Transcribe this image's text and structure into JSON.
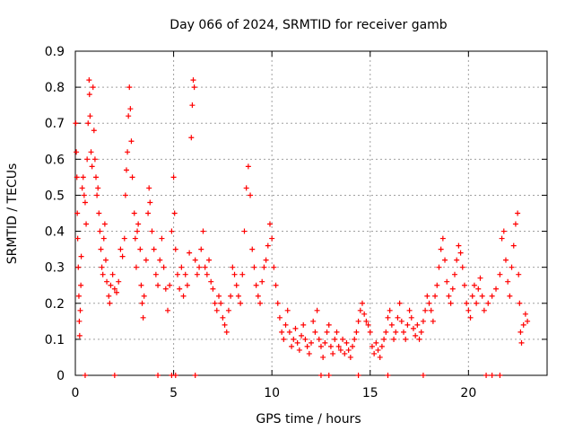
{
  "chart_data": {
    "type": "scatter",
    "title": "Day 066 of 2024, SRMTID for receiver gamb",
    "xlabel": "GPS time / hours",
    "ylabel": "SRMTID / TECUs",
    "xlim": [
      0,
      24
    ],
    "ylim": [
      0,
      0.9
    ],
    "x_ticks": [
      "0",
      "5",
      "10",
      "15",
      "20"
    ],
    "x_tick_values": [
      0,
      5,
      10,
      15,
      20
    ],
    "y_ticks": [
      "0",
      "0.1",
      "0.2",
      "0.3",
      "0.4",
      "0.5",
      "0.6",
      "0.7",
      "0.8",
      "0.9"
    ],
    "y_tick_values": [
      0,
      0.1,
      0.2,
      0.3,
      0.4,
      0.5,
      0.6,
      0.7,
      0.8,
      0.9
    ],
    "grid": true,
    "marker": "+",
    "series_color": "#ff0000",
    "series": [
      {
        "name": "SRMTID",
        "points": [
          [
            0.02,
            0.7
          ],
          [
            0.05,
            0.62
          ],
          [
            0.08,
            0.55
          ],
          [
            0.1,
            0.45
          ],
          [
            0.12,
            0.38
          ],
          [
            0.15,
            0.3
          ],
          [
            0.18,
            0.22
          ],
          [
            0.2,
            0.15
          ],
          [
            0.22,
            0.11
          ],
          [
            0.25,
            0.18
          ],
          [
            0.28,
            0.25
          ],
          [
            0.3,
            0.33
          ],
          [
            0.35,
            0.52
          ],
          [
            0.4,
            0.55
          ],
          [
            0.45,
            0.5
          ],
          [
            0.5,
            0.48
          ],
          [
            0.55,
            0.42
          ],
          [
            0.6,
            0.6
          ],
          [
            0.65,
            0.7
          ],
          [
            0.7,
            0.82
          ],
          [
            0.72,
            0.78
          ],
          [
            0.75,
            0.72
          ],
          [
            0.8,
            0.62
          ],
          [
            0.85,
            0.58
          ],
          [
            0.9,
            0.8
          ],
          [
            0.95,
            0.68
          ],
          [
            1.0,
            0.6
          ],
          [
            1.05,
            0.55
          ],
          [
            1.1,
            0.5
          ],
          [
            1.15,
            0.52
          ],
          [
            1.2,
            0.45
          ],
          [
            1.25,
            0.4
          ],
          [
            1.3,
            0.35
          ],
          [
            1.35,
            0.3
          ],
          [
            1.4,
            0.28
          ],
          [
            1.45,
            0.38
          ],
          [
            1.5,
            0.42
          ],
          [
            1.55,
            0.32
          ],
          [
            1.6,
            0.26
          ],
          [
            1.7,
            0.22
          ],
          [
            1.75,
            0.2
          ],
          [
            1.8,
            0.25
          ],
          [
            1.9,
            0.28
          ],
          [
            2.0,
            0.24
          ],
          [
            2.1,
            0.23
          ],
          [
            2.2,
            0.26
          ],
          [
            2.3,
            0.35
          ],
          [
            2.4,
            0.33
          ],
          [
            2.5,
            0.38
          ],
          [
            2.55,
            0.5
          ],
          [
            2.6,
            0.57
          ],
          [
            2.65,
            0.62
          ],
          [
            2.7,
            0.72
          ],
          [
            2.75,
            0.8
          ],
          [
            2.8,
            0.74
          ],
          [
            2.85,
            0.65
          ],
          [
            2.9,
            0.55
          ],
          [
            3.0,
            0.45
          ],
          [
            3.05,
            0.38
          ],
          [
            3.1,
            0.3
          ],
          [
            3.15,
            0.4
          ],
          [
            3.2,
            0.42
          ],
          [
            3.3,
            0.35
          ],
          [
            3.35,
            0.25
          ],
          [
            3.4,
            0.2
          ],
          [
            3.45,
            0.16
          ],
          [
            3.5,
            0.22
          ],
          [
            3.6,
            0.32
          ],
          [
            3.7,
            0.45
          ],
          [
            3.75,
            0.52
          ],
          [
            3.8,
            0.48
          ],
          [
            3.9,
            0.4
          ],
          [
            4.0,
            0.35
          ],
          [
            4.1,
            0.28
          ],
          [
            4.2,
            0.25
          ],
          [
            4.3,
            0.32
          ],
          [
            4.4,
            0.38
          ],
          [
            4.5,
            0.3
          ],
          [
            4.6,
            0.24
          ],
          [
            4.7,
            0.18
          ],
          [
            4.8,
            0.25
          ],
          [
            4.9,
            0.4
          ],
          [
            5.0,
            0.55
          ],
          [
            5.05,
            0.45
          ],
          [
            5.1,
            0.35
          ],
          [
            5.2,
            0.28
          ],
          [
            5.3,
            0.24
          ],
          [
            5.4,
            0.3
          ],
          [
            5.5,
            0.22
          ],
          [
            5.6,
            0.28
          ],
          [
            5.7,
            0.25
          ],
          [
            5.8,
            0.34
          ],
          [
            5.9,
            0.66
          ],
          [
            5.95,
            0.75
          ],
          [
            6.0,
            0.82
          ],
          [
            6.05,
            0.8
          ],
          [
            6.1,
            0.32
          ],
          [
            6.2,
            0.28
          ],
          [
            6.3,
            0.3
          ],
          [
            6.4,
            0.35
          ],
          [
            6.5,
            0.4
          ],
          [
            6.6,
            0.3
          ],
          [
            6.7,
            0.28
          ],
          [
            6.8,
            0.32
          ],
          [
            6.9,
            0.26
          ],
          [
            7.0,
            0.24
          ],
          [
            7.1,
            0.2
          ],
          [
            7.2,
            0.18
          ],
          [
            7.3,
            0.22
          ],
          [
            7.4,
            0.2
          ],
          [
            7.5,
            0.16
          ],
          [
            7.6,
            0.14
          ],
          [
            7.7,
            0.12
          ],
          [
            7.8,
            0.18
          ],
          [
            7.9,
            0.22
          ],
          [
            8.0,
            0.3
          ],
          [
            8.1,
            0.28
          ],
          [
            8.2,
            0.25
          ],
          [
            8.3,
            0.22
          ],
          [
            8.4,
            0.2
          ],
          [
            8.5,
            0.28
          ],
          [
            8.6,
            0.4
          ],
          [
            8.7,
            0.52
          ],
          [
            8.8,
            0.58
          ],
          [
            8.9,
            0.5
          ],
          [
            9.0,
            0.35
          ],
          [
            9.1,
            0.3
          ],
          [
            9.2,
            0.25
          ],
          [
            9.3,
            0.22
          ],
          [
            9.4,
            0.2
          ],
          [
            9.5,
            0.26
          ],
          [
            9.6,
            0.3
          ],
          [
            9.7,
            0.32
          ],
          [
            9.8,
            0.36
          ],
          [
            9.9,
            0.42
          ],
          [
            10.0,
            0.38
          ],
          [
            10.1,
            0.3
          ],
          [
            10.2,
            0.25
          ],
          [
            10.3,
            0.2
          ],
          [
            10.4,
            0.16
          ],
          [
            10.5,
            0.12
          ],
          [
            10.6,
            0.1
          ],
          [
            10.7,
            0.14
          ],
          [
            10.8,
            0.18
          ],
          [
            10.9,
            0.12
          ],
          [
            11.0,
            0.08
          ],
          [
            11.1,
            0.1
          ],
          [
            11.2,
            0.13
          ],
          [
            11.3,
            0.09
          ],
          [
            11.4,
            0.07
          ],
          [
            11.5,
            0.11
          ],
          [
            11.6,
            0.14
          ],
          [
            11.7,
            0.1
          ],
          [
            11.8,
            0.08
          ],
          [
            11.9,
            0.06
          ],
          [
            12.0,
            0.09
          ],
          [
            12.1,
            0.15
          ],
          [
            12.2,
            0.12
          ],
          [
            12.3,
            0.18
          ],
          [
            12.4,
            0.1
          ],
          [
            12.5,
            0.08
          ],
          [
            12.6,
            0.05
          ],
          [
            12.7,
            0.09
          ],
          [
            12.8,
            0.12
          ],
          [
            12.9,
            0.14
          ],
          [
            13.0,
            0.08
          ],
          [
            13.1,
            0.06
          ],
          [
            13.2,
            0.1
          ],
          [
            13.3,
            0.12
          ],
          [
            13.4,
            0.08
          ],
          [
            13.5,
            0.07
          ],
          [
            13.6,
            0.1
          ],
          [
            13.7,
            0.06
          ],
          [
            13.8,
            0.09
          ],
          [
            13.9,
            0.07
          ],
          [
            14.0,
            0.05
          ],
          [
            14.1,
            0.08
          ],
          [
            14.2,
            0.1
          ],
          [
            14.3,
            0.12
          ],
          [
            14.4,
            0.15
          ],
          [
            14.5,
            0.18
          ],
          [
            14.6,
            0.2
          ],
          [
            14.7,
            0.17
          ],
          [
            14.8,
            0.15
          ],
          [
            14.9,
            0.14
          ],
          [
            15.0,
            0.12
          ],
          [
            15.1,
            0.08
          ],
          [
            15.2,
            0.06
          ],
          [
            15.3,
            0.09
          ],
          [
            15.4,
            0.07
          ],
          [
            15.5,
            0.05
          ],
          [
            15.6,
            0.08
          ],
          [
            15.7,
            0.1
          ],
          [
            15.8,
            0.12
          ],
          [
            15.9,
            0.16
          ],
          [
            16.0,
            0.18
          ],
          [
            16.1,
            0.14
          ],
          [
            16.2,
            0.1
          ],
          [
            16.3,
            0.12
          ],
          [
            16.4,
            0.16
          ],
          [
            16.5,
            0.2
          ],
          [
            16.6,
            0.15
          ],
          [
            16.7,
            0.12
          ],
          [
            16.8,
            0.1
          ],
          [
            16.9,
            0.14
          ],
          [
            17.0,
            0.18
          ],
          [
            17.1,
            0.16
          ],
          [
            17.2,
            0.13
          ],
          [
            17.3,
            0.11
          ],
          [
            17.4,
            0.14
          ],
          [
            17.5,
            0.1
          ],
          [
            17.6,
            0.12
          ],
          [
            17.7,
            0.15
          ],
          [
            17.8,
            0.18
          ],
          [
            17.9,
            0.22
          ],
          [
            18.0,
            0.2
          ],
          [
            18.1,
            0.18
          ],
          [
            18.2,
            0.15
          ],
          [
            18.3,
            0.22
          ],
          [
            18.4,
            0.25
          ],
          [
            18.5,
            0.3
          ],
          [
            18.6,
            0.35
          ],
          [
            18.7,
            0.38
          ],
          [
            18.8,
            0.32
          ],
          [
            18.9,
            0.26
          ],
          [
            19.0,
            0.22
          ],
          [
            19.1,
            0.2
          ],
          [
            19.2,
            0.24
          ],
          [
            19.3,
            0.28
          ],
          [
            19.4,
            0.32
          ],
          [
            19.5,
            0.36
          ],
          [
            19.6,
            0.34
          ],
          [
            19.7,
            0.3
          ],
          [
            19.8,
            0.25
          ],
          [
            19.9,
            0.2
          ],
          [
            20.0,
            0.18
          ],
          [
            20.1,
            0.16
          ],
          [
            20.2,
            0.22
          ],
          [
            20.3,
            0.25
          ],
          [
            20.4,
            0.2
          ],
          [
            20.5,
            0.24
          ],
          [
            20.6,
            0.27
          ],
          [
            20.7,
            0.22
          ],
          [
            20.8,
            0.18
          ],
          [
            21.0,
            0.2
          ],
          [
            21.2,
            0.22
          ],
          [
            21.4,
            0.24
          ],
          [
            21.6,
            0.28
          ],
          [
            21.7,
            0.38
          ],
          [
            21.8,
            0.4
          ],
          [
            21.9,
            0.32
          ],
          [
            22.0,
            0.26
          ],
          [
            22.1,
            0.22
          ],
          [
            22.2,
            0.3
          ],
          [
            22.3,
            0.36
          ],
          [
            22.4,
            0.42
          ],
          [
            22.5,
            0.45
          ],
          [
            22.55,
            0.28
          ],
          [
            22.6,
            0.2
          ],
          [
            22.65,
            0.12
          ],
          [
            22.7,
            0.09
          ],
          [
            22.8,
            0.14
          ],
          [
            22.9,
            0.17
          ],
          [
            23.0,
            0.15
          ],
          [
            0.5,
            0.0
          ],
          [
            2.0,
            0.0
          ],
          [
            4.2,
            0.0
          ],
          [
            4.9,
            0.0
          ],
          [
            5.1,
            0.0
          ],
          [
            6.1,
            0.0
          ],
          [
            12.5,
            0.0
          ],
          [
            12.9,
            0.0
          ],
          [
            14.4,
            0.0
          ],
          [
            15.9,
            0.0
          ],
          [
            17.7,
            0.0
          ],
          [
            20.9,
            0.0
          ],
          [
            21.2,
            0.0
          ],
          [
            21.6,
            0.0
          ]
        ]
      }
    ]
  }
}
